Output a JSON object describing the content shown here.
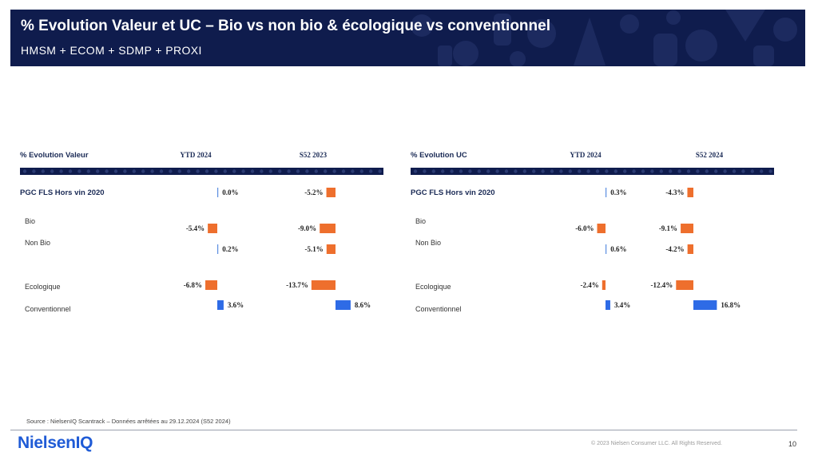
{
  "header": {
    "title": "% Evolution Valeur et UC – Bio vs non bio & écologique vs conventionnel",
    "subtitle": "HMSM + ECOM + SDMP + PROXI"
  },
  "colors": {
    "header_bg": "#0f1c4d",
    "negative": "#ee6f2d",
    "positive": "#2e6be6",
    "neutral": "#5b8ee0"
  },
  "chart_data": [
    {
      "type": "bar",
      "title": "% Evolution Valeur",
      "categories": [
        "PGC FLS Hors vin 2020",
        "Bio",
        "Non Bio",
        "Ecologique",
        "Conventionnel"
      ],
      "series": [
        {
          "name": "YTD 2024",
          "values": [
            0.0,
            -5.4,
            0.2,
            -6.8,
            3.6
          ],
          "labels": [
            "0.0%",
            "-5.4%",
            "0.2%",
            "-6.8%",
            "3.6%"
          ]
        },
        {
          "name": "S52 2023",
          "values": [
            -5.2,
            -9.0,
            -5.1,
            -13.7,
            8.6
          ],
          "labels": [
            "-5.2%",
            "-9.0%",
            "-5.1%",
            "-13.7%",
            "8.6%"
          ]
        }
      ]
    },
    {
      "type": "bar",
      "title": "% Evolution UC",
      "categories": [
        "PGC FLS Hors vin 2020",
        "Bio",
        "Non Bio",
        "Ecologique",
        "Conventionnel"
      ],
      "series": [
        {
          "name": "YTD 2024",
          "values": [
            0.3,
            -6.0,
            0.6,
            -2.4,
            3.4
          ],
          "labels": [
            "0.3%",
            "-6.0%",
            "0.6%",
            "-2.4%",
            "3.4%"
          ]
        },
        {
          "name": "S52 2024",
          "values": [
            -4.3,
            -9.1,
            -4.2,
            -12.4,
            16.8
          ],
          "labels": [
            "-4.3%",
            "-9.1%",
            "-4.2%",
            "-12.4%",
            "16.8%"
          ]
        }
      ]
    }
  ],
  "footer": {
    "source": "Source : NielsenIQ Scantrack – Données arrêtées au 29.12.2024 (S52 2024)",
    "logo": "NielsenIQ",
    "copyright": "© 2023 Nielsen Consumer LLC. All Rights Reserved.",
    "page_number": "10"
  }
}
